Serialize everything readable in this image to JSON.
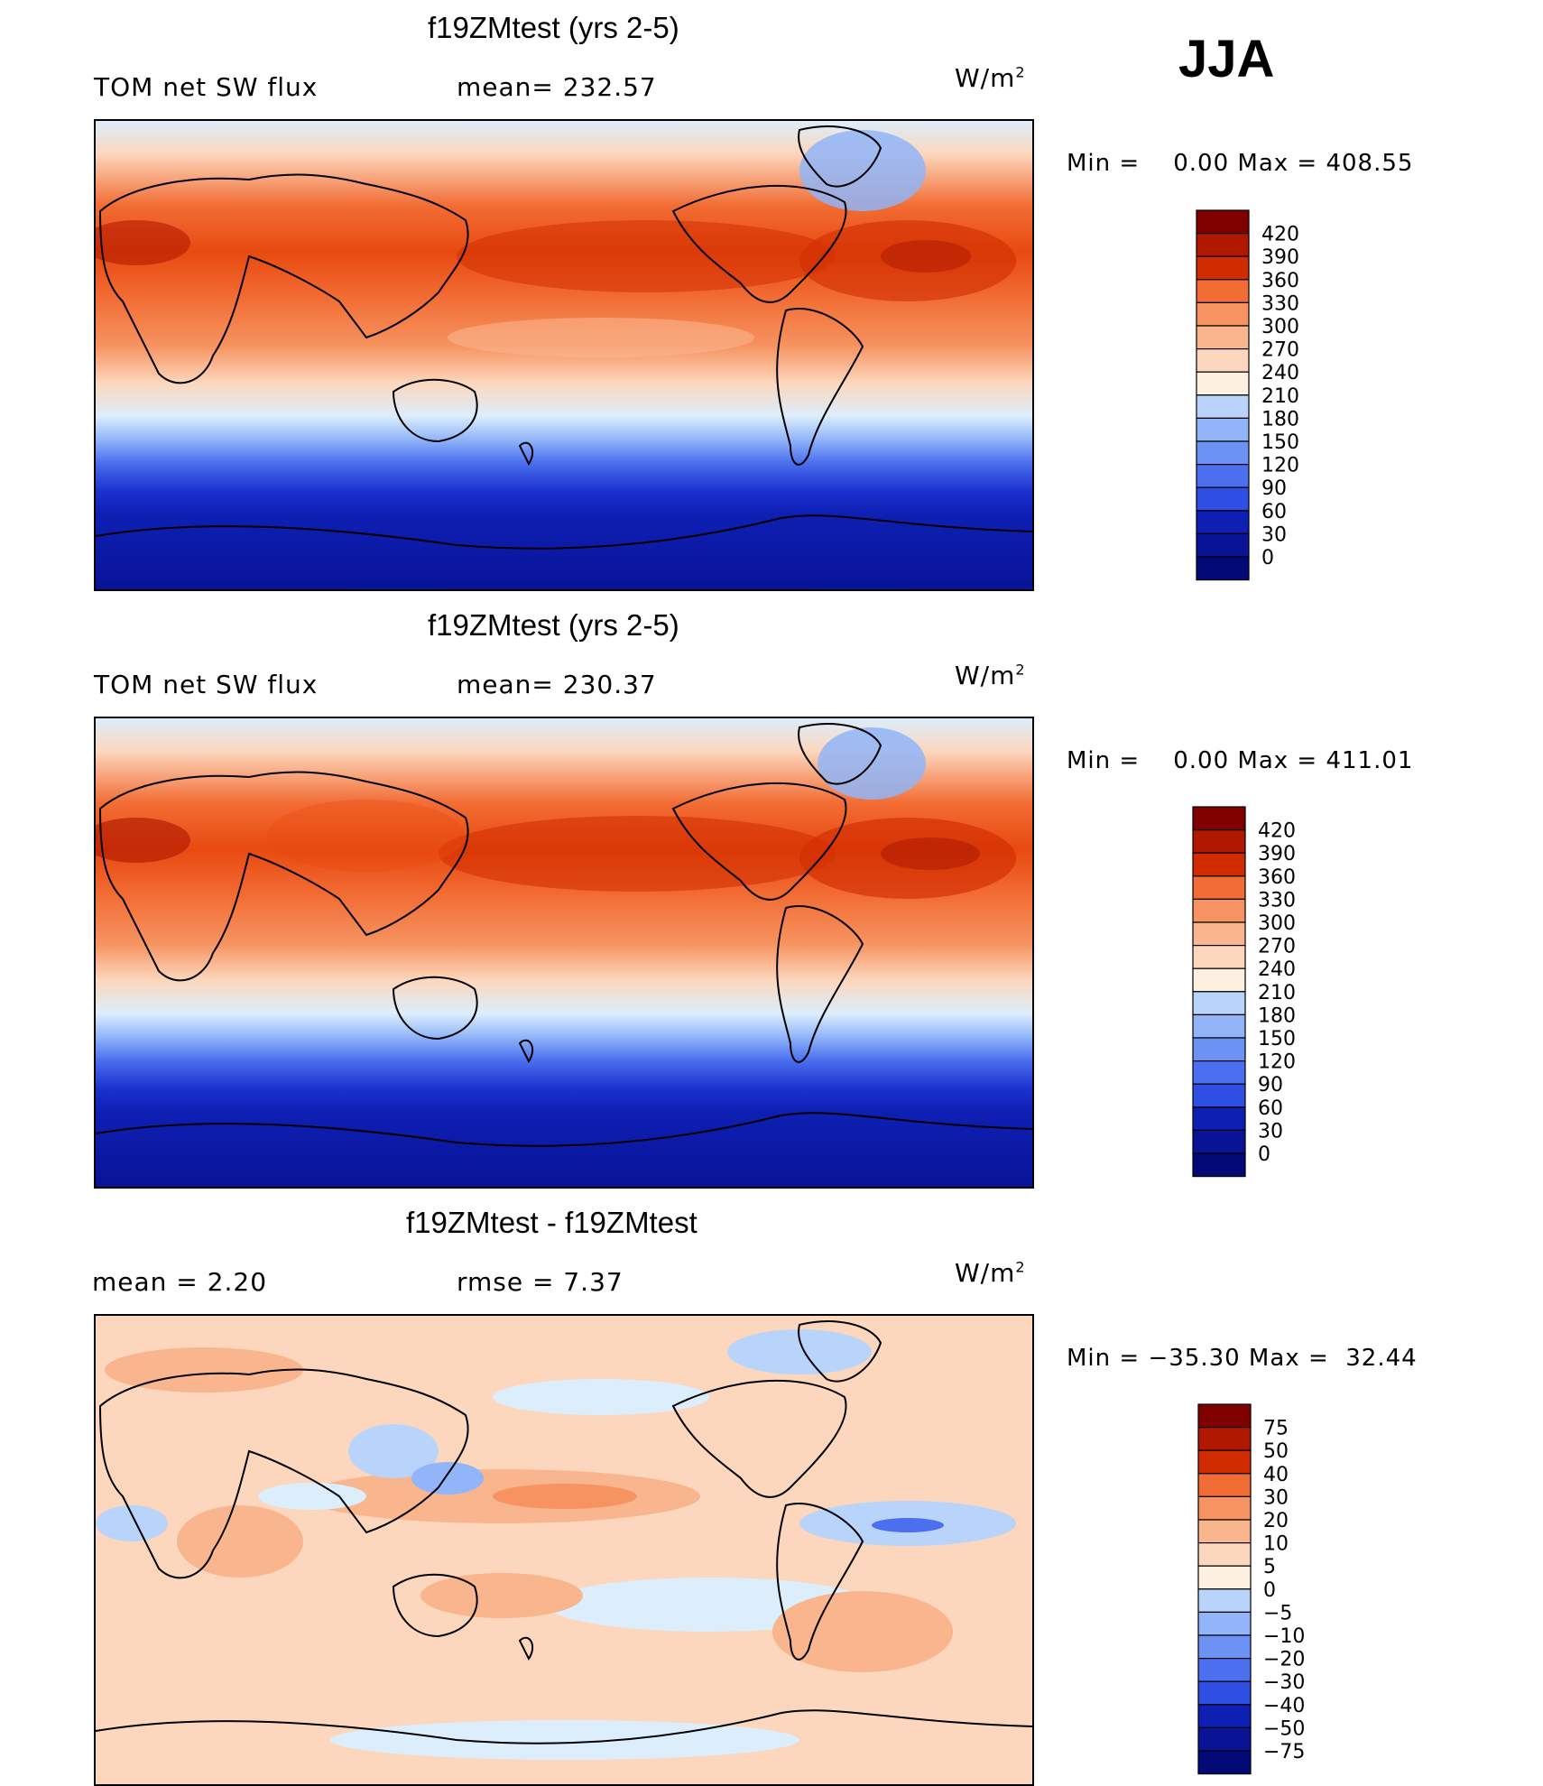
{
  "season": "JJA",
  "units": "W/m",
  "units_exp": "2",
  "panels": [
    {
      "title": "f19ZMtest (yrs 2-5)",
      "variable": "TOM net SW flux",
      "stat": "mean= 232.57",
      "minmax": "Min =    0.00 Max = 408.55",
      "colorbar": {
        "labels": [
          "420",
          "390",
          "360",
          "330",
          "300",
          "270",
          "240",
          "210",
          "180",
          "150",
          "120",
          "90",
          "60",
          "30",
          "0"
        ],
        "colors": [
          "#800000",
          "#b01800",
          "#d02c00",
          "#e84a10",
          "#f26d35",
          "#f69360",
          "#f9b58e",
          "#fcd7bd",
          "#fdf0e0",
          "#dceefc",
          "#b8d4fb",
          "#91b5f8",
          "#6c93f3",
          "#4b6fee",
          "#2e4ee4",
          "#1b32d0",
          "#0e1fb4",
          "#081396",
          "#030a78"
        ]
      }
    },
    {
      "title": "f19ZMtest (yrs 2-5)",
      "variable": "TOM net SW flux",
      "stat": "mean= 230.37",
      "minmax": "Min =    0.00 Max = 411.01",
      "colorbar": {
        "labels": [
          "420",
          "390",
          "360",
          "330",
          "300",
          "270",
          "240",
          "210",
          "180",
          "150",
          "120",
          "90",
          "60",
          "30",
          "0"
        ],
        "colors": [
          "#800000",
          "#b01800",
          "#d02c00",
          "#e84a10",
          "#f26d35",
          "#f69360",
          "#f9b58e",
          "#fcd7bd",
          "#fdf0e0",
          "#dceefc",
          "#b8d4fb",
          "#91b5f8",
          "#6c93f3",
          "#4b6fee",
          "#2e4ee4",
          "#1b32d0",
          "#0e1fb4",
          "#081396",
          "#030a78"
        ]
      }
    },
    {
      "title": "f19ZMtest - f19ZMtest",
      "variable": "mean =    2.20",
      "stat": "rmse =    7.37",
      "minmax": "Min = −35.30 Max =  32.44",
      "colorbar": {
        "labels": [
          "75",
          "50",
          "40",
          "30",
          "20",
          "10",
          "5",
          "0",
          "−5",
          "−10",
          "−20",
          "−30",
          "−40",
          "−50",
          "−75"
        ],
        "colors": [
          "#800000",
          "#b01800",
          "#d02c00",
          "#e84a10",
          "#f26d35",
          "#f69360",
          "#f9b58e",
          "#fcd7bd",
          "#fdf0e0",
          "#dceefc",
          "#b8d4fb",
          "#91b5f8",
          "#6c93f3",
          "#4b6fee",
          "#2e4ee4",
          "#1b32d0",
          "#0e1fb4",
          "#081396",
          "#030a78"
        ]
      }
    }
  ],
  "chart_data": [
    {
      "type": "heatmap",
      "title": "f19ZMtest (yrs 2-5)",
      "subtitle": "TOM net SW flux",
      "mean": 232.57,
      "min": 0.0,
      "max": 408.55,
      "units": "W/m2",
      "levels": [
        0,
        30,
        60,
        90,
        120,
        150,
        180,
        210,
        240,
        270,
        300,
        330,
        360,
        390,
        420
      ]
    },
    {
      "type": "heatmap",
      "title": "f19ZMtest (yrs 2-5)",
      "subtitle": "TOM net SW flux",
      "mean": 230.37,
      "min": 0.0,
      "max": 411.01,
      "units": "W/m2",
      "levels": [
        0,
        30,
        60,
        90,
        120,
        150,
        180,
        210,
        240,
        270,
        300,
        330,
        360,
        390,
        420
      ]
    },
    {
      "type": "heatmap",
      "title": "f19ZMtest - f19ZMtest",
      "mean": 2.2,
      "rmse": 7.37,
      "min": -35.3,
      "max": 32.44,
      "units": "W/m2",
      "levels": [
        -75,
        -50,
        -40,
        -30,
        -20,
        -10,
        -5,
        0,
        5,
        10,
        20,
        30,
        40,
        50,
        75
      ]
    }
  ]
}
